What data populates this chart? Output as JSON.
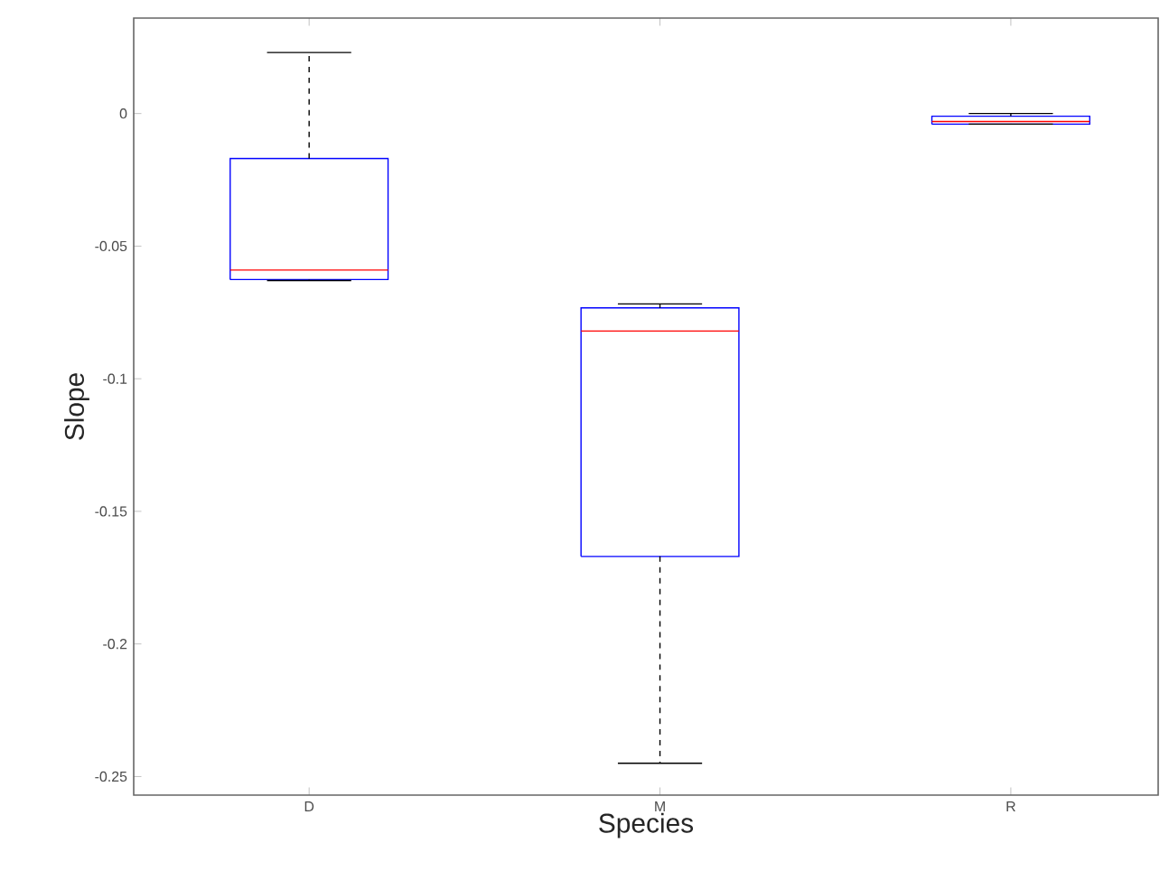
{
  "chart_data": {
    "type": "box",
    "xlabel": "Species",
    "ylabel": "Slope",
    "categories": [
      "D",
      "M",
      "R"
    ],
    "color": "#0000ff",
    "boxes": [
      {
        "low": -0.063,
        "q1": -0.0626,
        "median": -0.059,
        "q3": -0.017,
        "high": 0.023
      },
      {
        "low": -0.245,
        "q1": -0.167,
        "median": -0.082,
        "q3": -0.0733,
        "high": -0.0718
      },
      {
        "low": -0.004,
        "q1": -0.004,
        "median": -0.003,
        "q3": -0.001,
        "high": 0.0
      }
    ],
    "ylim": [
      -0.257,
      0.036
    ],
    "yticks": [
      -0.25,
      -0.2,
      -0.15,
      -0.1,
      -0.05,
      0
    ]
  }
}
